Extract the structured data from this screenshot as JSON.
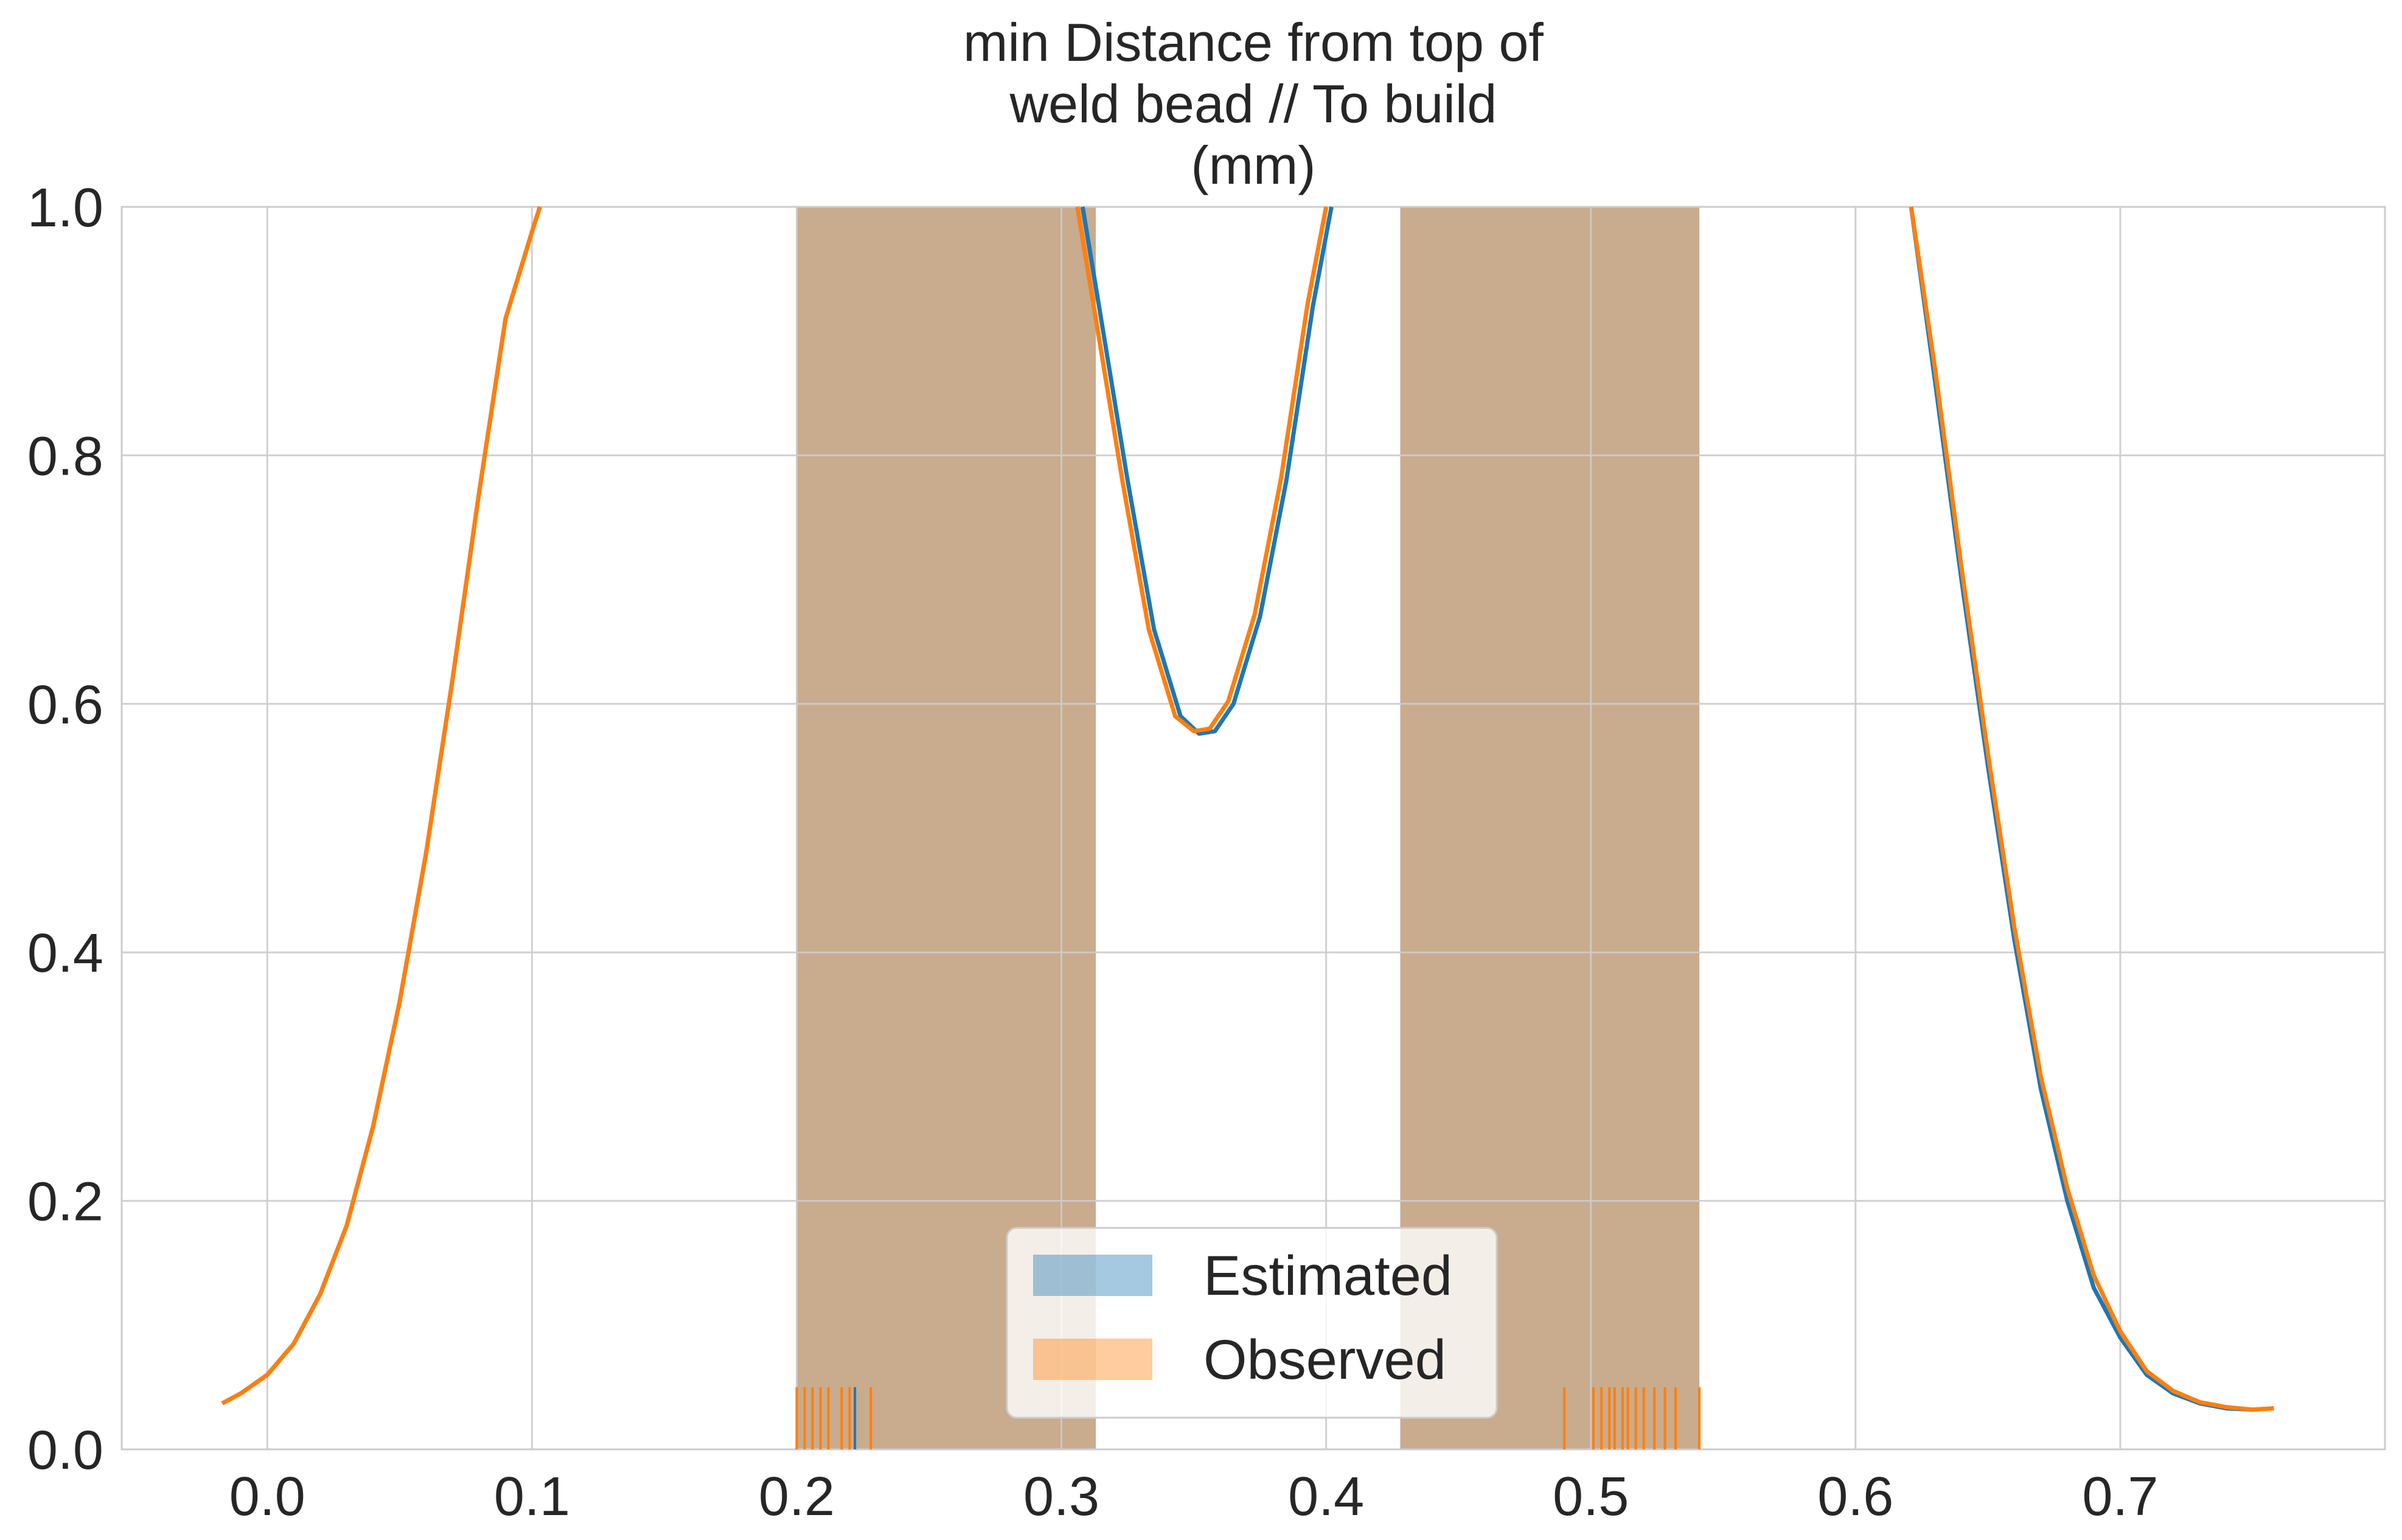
{
  "chart_data": {
    "type": "area",
    "title": "min Distance from top of\nweld bead // To build\n(mm)",
    "title_lines": [
      "min Distance from top of",
      "weld bead // To build",
      "(mm)"
    ],
    "xlabel": "",
    "ylabel": "",
    "xlim": [
      -0.055,
      0.8
    ],
    "ylim": [
      0.0,
      1.0
    ],
    "x_ticks": [
      0.0,
      0.1,
      0.2,
      0.3,
      0.4,
      0.5,
      0.6,
      0.7
    ],
    "x_tick_labels": [
      "0.0",
      "0.1",
      "0.2",
      "0.3",
      "0.4",
      "0.5",
      "0.6",
      "0.7"
    ],
    "y_ticks": [
      0.0,
      0.2,
      0.4,
      0.6,
      0.8,
      1.0
    ],
    "y_tick_labels": [
      "0.0",
      "0.2",
      "0.4",
      "0.6",
      "0.8",
      "1.0"
    ],
    "grid": true,
    "legend_placement": "lower center",
    "shaded_regions": [
      {
        "x_start": 0.2,
        "x_end": 0.313
      },
      {
        "x_start": 0.428,
        "x_end": 0.541
      }
    ],
    "series": [
      {
        "name": "Estimated",
        "color": "#1f77b4",
        "fill_color": "#1f77b4",
        "fill_opacity": 0.4,
        "x": [
          -0.017,
          -0.01,
          0.0,
          0.01,
          0.02,
          0.03,
          0.04,
          0.05,
          0.06,
          0.07,
          0.08,
          0.09,
          0.1,
          0.103,
          0.308,
          0.315,
          0.325,
          0.335,
          0.345,
          0.352,
          0.358,
          0.365,
          0.375,
          0.385,
          0.395,
          0.402,
          0.621,
          0.63,
          0.64,
          0.65,
          0.66,
          0.67,
          0.68,
          0.69,
          0.7,
          0.71,
          0.72,
          0.73,
          0.74,
          0.75,
          0.758
        ],
        "y": [
          0.037,
          0.045,
          0.06,
          0.085,
          0.125,
          0.18,
          0.26,
          0.36,
          0.48,
          0.62,
          0.77,
          0.91,
          0.98,
          1.0,
          1.0,
          0.91,
          0.78,
          0.66,
          0.59,
          0.576,
          0.578,
          0.6,
          0.67,
          0.78,
          0.92,
          1.0,
          1.0,
          0.86,
          0.7,
          0.55,
          0.41,
          0.29,
          0.2,
          0.13,
          0.09,
          0.06,
          0.045,
          0.037,
          0.033,
          0.032,
          0.033
        ]
      },
      {
        "name": "Observed",
        "color": "#ff7f0e",
        "fill_color": "#ff7f0e",
        "fill_opacity": 0.4,
        "x": [
          -0.017,
          -0.01,
          0.0,
          0.01,
          0.02,
          0.03,
          0.04,
          0.05,
          0.06,
          0.07,
          0.08,
          0.09,
          0.1,
          0.103,
          0.306,
          0.313,
          0.323,
          0.333,
          0.343,
          0.35,
          0.356,
          0.363,
          0.373,
          0.383,
          0.393,
          0.4,
          0.621,
          0.63,
          0.64,
          0.65,
          0.66,
          0.67,
          0.68,
          0.69,
          0.7,
          0.71,
          0.72,
          0.73,
          0.74,
          0.75,
          0.758
        ],
        "y": [
          0.037,
          0.045,
          0.06,
          0.085,
          0.125,
          0.18,
          0.26,
          0.36,
          0.48,
          0.62,
          0.77,
          0.91,
          0.98,
          1.0,
          1.0,
          0.91,
          0.78,
          0.66,
          0.59,
          0.578,
          0.58,
          0.602,
          0.672,
          0.782,
          0.922,
          1.0,
          1.0,
          0.87,
          0.71,
          0.56,
          0.42,
          0.3,
          0.21,
          0.14,
          0.095,
          0.063,
          0.047,
          0.038,
          0.034,
          0.032,
          0.033
        ]
      }
    ],
    "rug": {
      "Estimated": [
        0.222
      ],
      "Observed": [
        0.2,
        0.203,
        0.206,
        0.209,
        0.212,
        0.217,
        0.22,
        0.228,
        0.49,
        0.501,
        0.504,
        0.507,
        0.509,
        0.512,
        0.514,
        0.517,
        0.52,
        0.524,
        0.528,
        0.532,
        0.541
      ]
    }
  }
}
